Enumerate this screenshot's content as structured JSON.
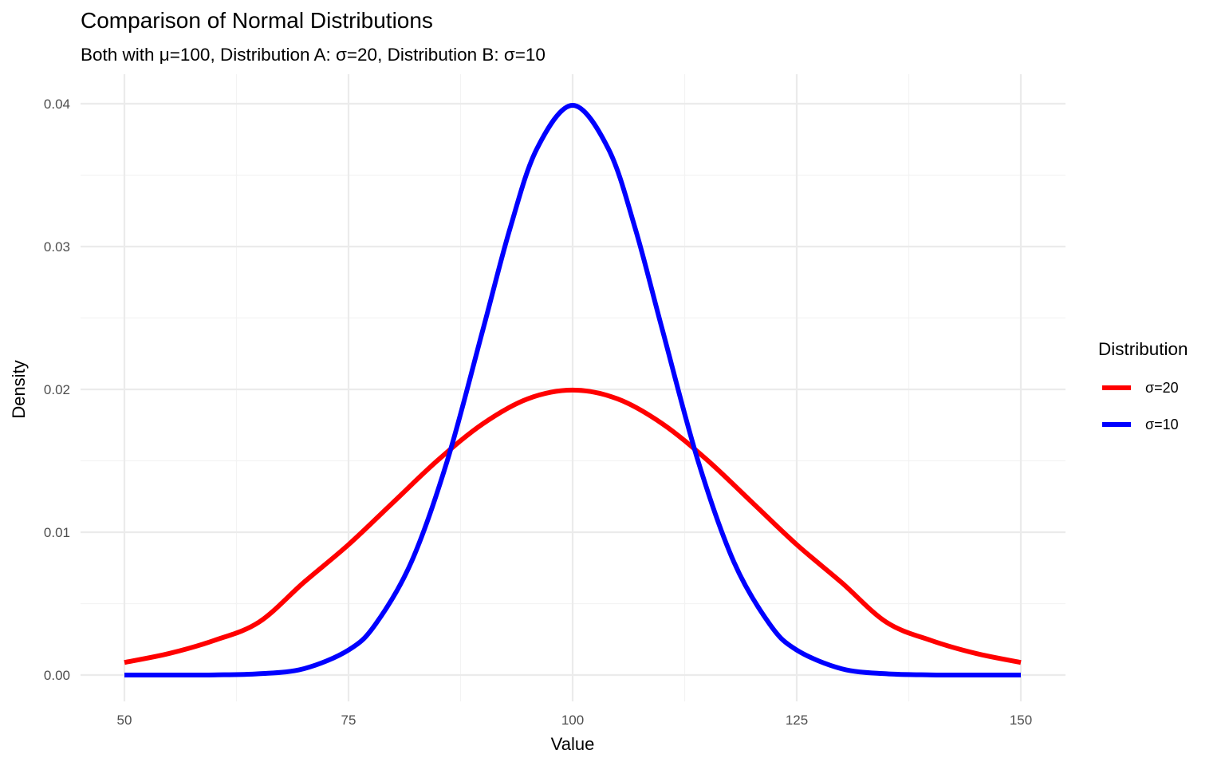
{
  "chart_data": {
    "type": "line",
    "title": "Comparison of Normal Distributions",
    "subtitle": "Both with μ=100, Distribution A: σ=20, Distribution B: σ=10",
    "xlabel": "Value",
    "ylabel": "Density",
    "xlim": [
      50,
      150
    ],
    "ylim": [
      0,
      0.04
    ],
    "x_ticks": [
      50,
      75,
      100,
      125,
      150
    ],
    "x_tick_labels": [
      "50",
      "75",
      "100",
      "125",
      "150"
    ],
    "y_ticks": [
      0,
      0.01,
      0.02,
      0.03,
      0.04
    ],
    "y_tick_labels": [
      "0.00",
      "0.01",
      "0.02",
      "0.03",
      "0.04"
    ],
    "grid": true,
    "legend": {
      "title": "Distribution",
      "position": "right"
    },
    "series": [
      {
        "name": "σ=20",
        "color": "#ff0000",
        "x": [
          50,
          55,
          60,
          65,
          70,
          75,
          80,
          85,
          90,
          95,
          100,
          105,
          110,
          115,
          120,
          125,
          130,
          135,
          140,
          145,
          150
        ],
        "y": [
          0.00088,
          0.00151,
          0.00242,
          0.0037,
          0.00648,
          0.00913,
          0.0121,
          0.01506,
          0.0176,
          0.01934,
          0.01995,
          0.01934,
          0.0176,
          0.01506,
          0.0121,
          0.00913,
          0.00648,
          0.0037,
          0.00242,
          0.00151,
          0.00088
        ]
      },
      {
        "name": "σ=10",
        "color": "#0000ff",
        "x": [
          50,
          55,
          60,
          65,
          70,
          75,
          78,
          82,
          86,
          90,
          93,
          96,
          100,
          104,
          107,
          110,
          114,
          118,
          122,
          125,
          130,
          135,
          140,
          145,
          150
        ],
        "y": [
          0.0,
          0.0,
          1e-05,
          9e-05,
          0.00044,
          0.00175,
          0.00355,
          0.0079,
          0.01497,
          0.0242,
          0.03123,
          0.03683,
          0.03989,
          0.03683,
          0.03123,
          0.0242,
          0.01497,
          0.0079,
          0.00355,
          0.00175,
          0.00044,
          9e-05,
          1e-05,
          0.0,
          0.0
        ]
      }
    ]
  }
}
